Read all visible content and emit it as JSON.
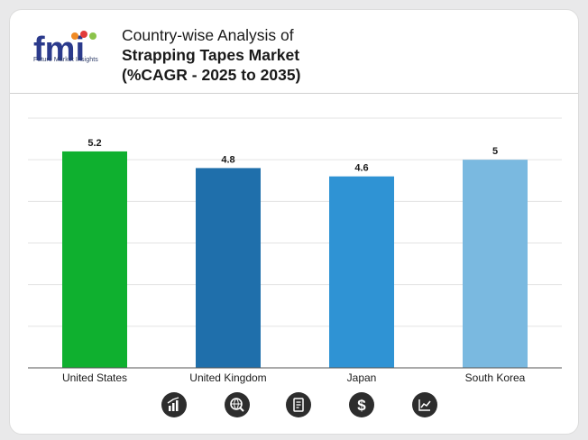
{
  "header": {
    "title_line1": "Country-wise Analysis of",
    "title_line2": "Strapping Tapes Market",
    "title_line3": "(%CAGR - 2025 to 2035)",
    "logo_text": "fmi",
    "logo_caption": "Future Market Insights"
  },
  "chart_data": {
    "type": "bar",
    "title": "Country-wise Analysis of Strapping Tapes Market (%CAGR - 2025 to 2035)",
    "categories": [
      "United States",
      "United Kingdom",
      "Japan",
      "South Korea"
    ],
    "values": [
      5.2,
      4.8,
      4.6,
      5
    ],
    "value_labels": [
      "5.2",
      "4.8",
      "4.6",
      "5"
    ],
    "colors": [
      "#0fb02f",
      "#1f6fab",
      "#2f93d4",
      "#7ab9e0"
    ],
    "ylim": [
      0,
      6
    ],
    "grid": true,
    "xlabel": "",
    "ylabel": ""
  },
  "footer_icons": [
    "bar-growth-icon",
    "globe-search-icon",
    "document-icon",
    "dollar-icon",
    "trend-chart-icon"
  ]
}
